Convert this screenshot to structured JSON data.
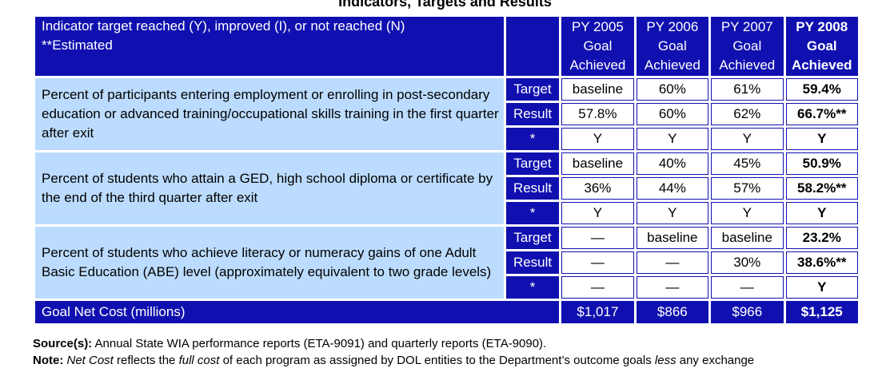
{
  "title": "Indicators, Targets and Results",
  "header": {
    "left_line1": "Indicator target reached (Y), improved (I), or not reached (N)",
    "left_line2": "**Estimated",
    "columns": [
      {
        "year": "PY 2005",
        "sub1": "Goal",
        "sub2": "Achieved"
      },
      {
        "year": "PY 2006",
        "sub1": "Goal",
        "sub2": "Achieved"
      },
      {
        "year": "PY 2007",
        "sub1": "Goal",
        "sub2": "Achieved"
      },
      {
        "year": "PY 2008",
        "sub1": "Goal",
        "sub2": "Achieved"
      }
    ]
  },
  "groups": [
    {
      "description": "Percent of participants entering employment or enrolling in post-secondary education or advanced training/occupational skills training in the first quarter after exit",
      "rows": [
        {
          "label": "Target",
          "values": [
            "baseline",
            "60%",
            "61%",
            "59.4%"
          ]
        },
        {
          "label": "Result",
          "values": [
            "57.8%",
            "60%",
            "62%",
            "66.7%**"
          ]
        },
        {
          "label": "*",
          "values": [
            "Y",
            "Y",
            "Y",
            "Y"
          ]
        }
      ]
    },
    {
      "description": "Percent of students who attain a GED, high school diploma or certificate by the end of the third quarter after exit",
      "rows": [
        {
          "label": "Target",
          "values": [
            "baseline",
            "40%",
            "45%",
            "50.9%"
          ]
        },
        {
          "label": "Result",
          "values": [
            "36%",
            "44%",
            "57%",
            "58.2%**"
          ]
        },
        {
          "label": "*",
          "values": [
            "Y",
            "Y",
            "Y",
            "Y"
          ]
        }
      ]
    },
    {
      "description": "Percent of students who achieve literacy or numeracy gains of one Adult Basic Education (ABE) level (approximately equivalent to two grade levels)",
      "rows": [
        {
          "label": "Target",
          "values": [
            "—",
            "baseline",
            "baseline",
            "23.2%"
          ]
        },
        {
          "label": "Result",
          "values": [
            "—",
            "—",
            "30%",
            "38.6%**"
          ]
        },
        {
          "label": "*",
          "values": [
            "—",
            "—",
            "—",
            "Y"
          ]
        }
      ]
    }
  ],
  "cost": {
    "label": "Goal Net Cost (millions)",
    "values": [
      "$1,017",
      "$866",
      "$966",
      "$1,125"
    ]
  },
  "footer": {
    "source_label": "Source(s):",
    "source_text": " Annual State WIA performance reports (ETA-9091) and quarterly reports (ETA-9090).",
    "note_label": "Note:",
    "note_text_1": " Net Cost",
    "note_text_2": " reflects the ",
    "note_text_3": "full cost",
    "note_text_4": " of each program as assigned by DOL entities to the Department’s outcome goals ",
    "note_text_5": "less",
    "note_text_6": " any exchange"
  }
}
